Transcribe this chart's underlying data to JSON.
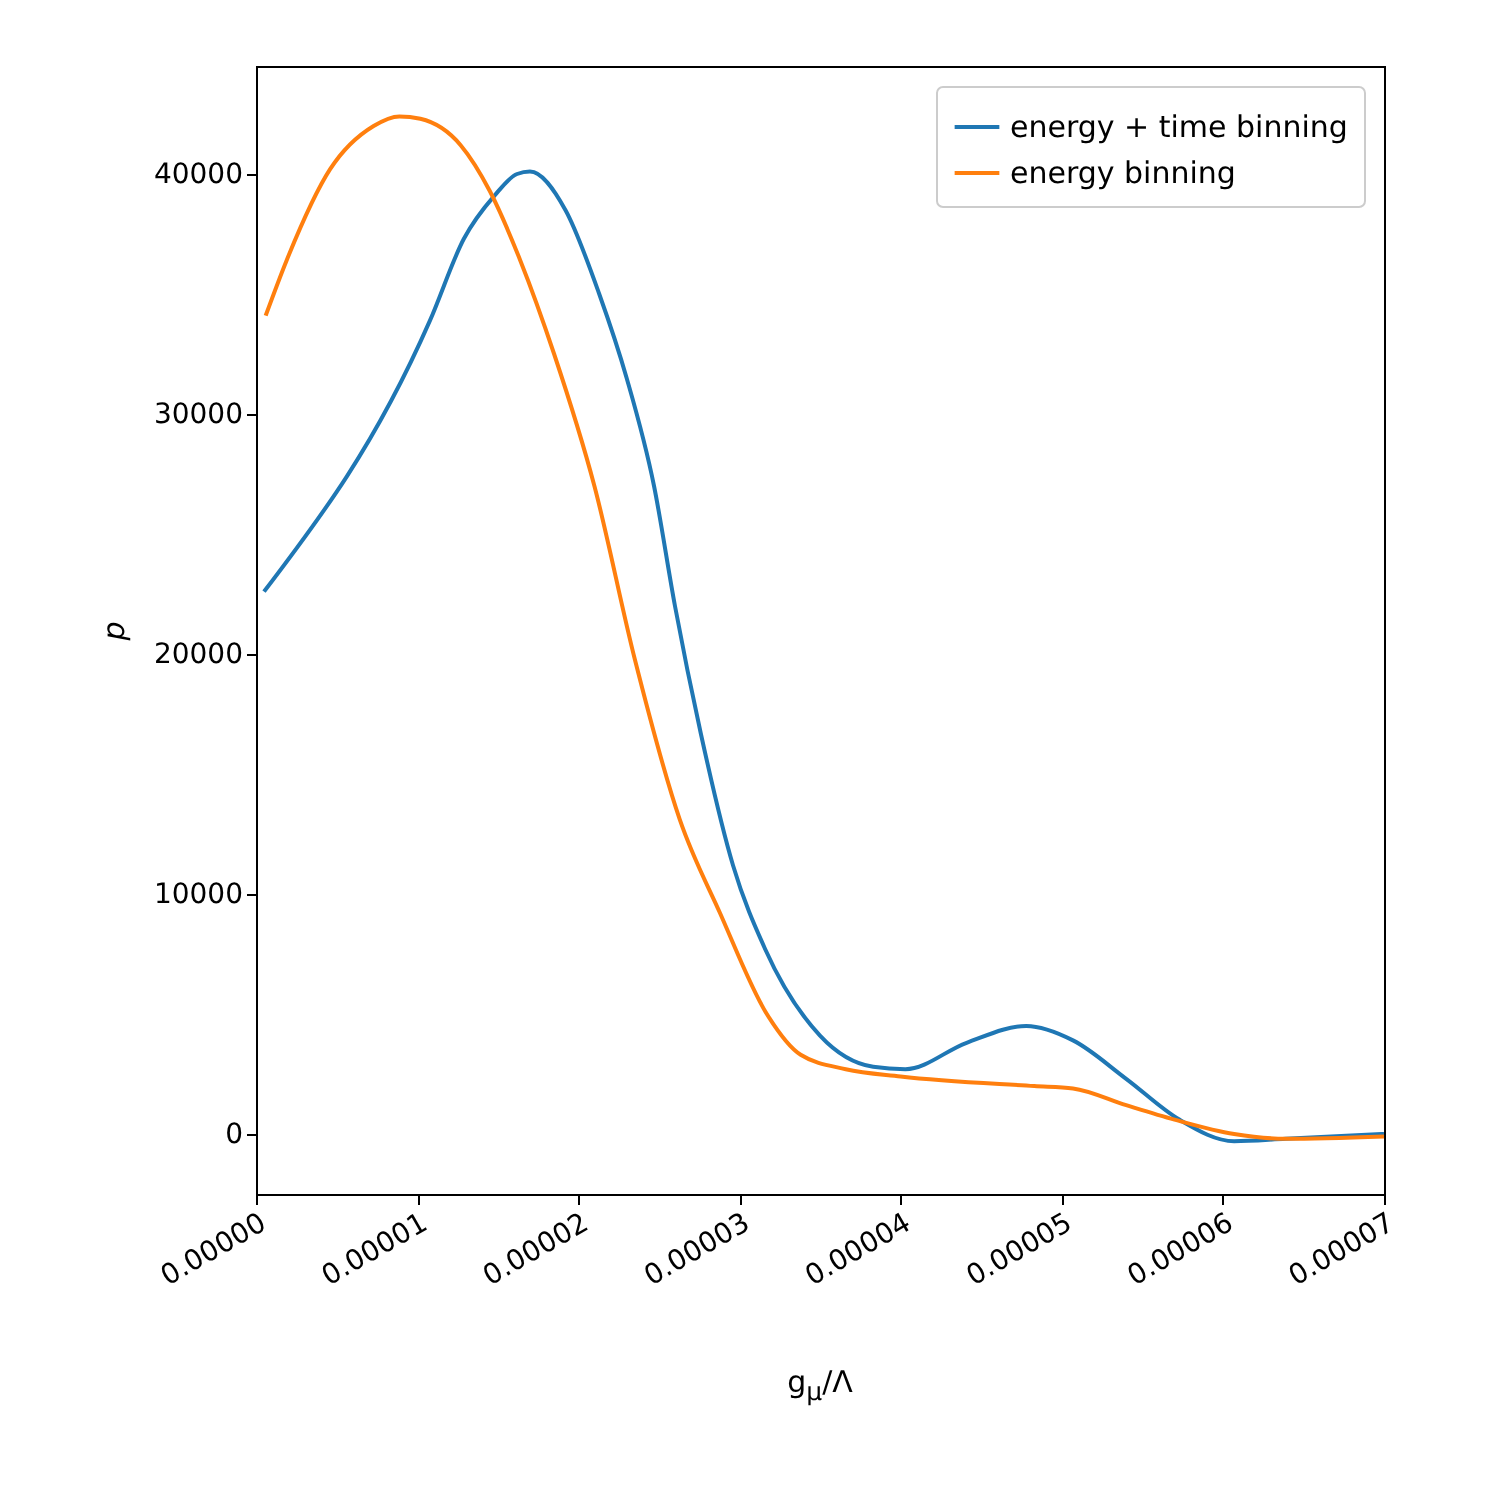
{
  "chart_data": {
    "type": "line",
    "xlabel": "g$_{μ}$/Λ",
    "ylabel": "p",
    "xlim": [
      0,
      7e-05
    ],
    "ylim": [
      -2500,
      44500
    ],
    "xticks": [
      {
        "value": 0,
        "label": "0.00000"
      },
      {
        "value": 1e-05,
        "label": "0.00001"
      },
      {
        "value": 2e-05,
        "label": "0.00002"
      },
      {
        "value": 3e-05,
        "label": "0.00003"
      },
      {
        "value": 4e-05,
        "label": "0.00004"
      },
      {
        "value": 5e-05,
        "label": "0.00005"
      },
      {
        "value": 6e-05,
        "label": "0.00006"
      },
      {
        "value": 7e-05,
        "label": "0.00007"
      }
    ],
    "yticks": [
      0,
      10000,
      20000,
      30000,
      40000
    ],
    "grid": false,
    "legend": "top right",
    "marker": "none",
    "line_style": "solid",
    "series": [
      {
        "name": "energy + time binning",
        "color": "#1f77b4",
        "x": [
          5e-07,
          1.08e-05,
          1.29e-05,
          1.48e-05,
          1.62e-05,
          1.7e-05,
          1.92e-05,
          2.13e-05,
          2.3e-05,
          2.47e-05,
          2.6e-05,
          2.76e-05,
          2.96e-05,
          3.16e-05,
          3.5e-05,
          3.83e-05,
          4.03e-05,
          4.41e-05,
          4.78e-05,
          5.07e-05,
          5.4e-05,
          5.73e-05,
          6.07e-05,
          6.39e-05,
          7e-05
        ],
        "values": [
          22600,
          33900,
          37300,
          39100,
          40000,
          40100,
          38500,
          35000,
          31500,
          27000,
          22000,
          16700,
          11200,
          7700,
          4100,
          2800,
          2700,
          3800,
          4500,
          3900,
          2300,
          600,
          -300,
          -200,
          0
        ]
      },
      {
        "name": "energy binning",
        "color": "#ff7f0e",
        "x": [
          6e-07,
          1.9e-06,
          4.6e-06,
          7.3e-06,
          8.9e-06,
          1.02e-05,
          1.27e-05,
          1.45e-05,
          1.64e-05,
          1.85e-05,
          2.1e-05,
          2.35e-05,
          2.63e-05,
          2.88e-05,
          3.17e-05,
          3.38e-05,
          3.66e-05,
          4e-05,
          4.83e-05,
          5.07e-05,
          5.4e-05,
          5.7e-05,
          6.07e-05,
          6.39e-05,
          7e-05
        ],
        "values": [
          34100,
          36400,
          40200,
          42000,
          42400,
          42300,
          41200,
          39300,
          36400,
          32500,
          27000,
          19800,
          13100,
          9200,
          5000,
          3300,
          2700,
          2400,
          2000,
          1900,
          1200,
          600,
          0,
          -200,
          -100
        ]
      }
    ]
  }
}
